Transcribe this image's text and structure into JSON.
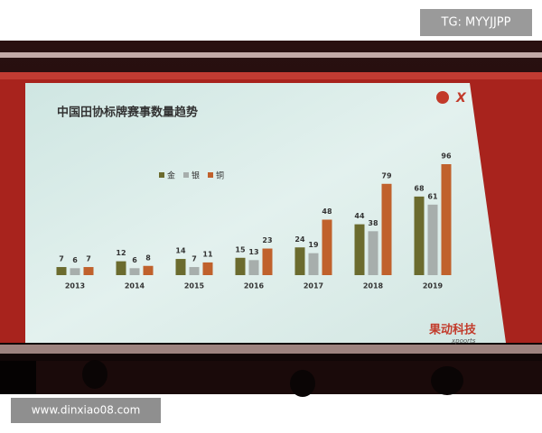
{
  "chart_data": {
    "type": "bar",
    "title": "中国田协标牌赛事数量趋势",
    "categories": [
      "2013",
      "2014",
      "2015",
      "2016",
      "2017",
      "2018",
      "2019"
    ],
    "series": [
      {
        "name": "金",
        "color": "#6b6b2e",
        "values": [
          7,
          12,
          14,
          15,
          24,
          44,
          68
        ]
      },
      {
        "name": "银",
        "color": "#a7aeac",
        "values": [
          6,
          6,
          7,
          13,
          19,
          38,
          61
        ]
      },
      {
        "name": "铜",
        "color": "#c0612c",
        "values": [
          7,
          8,
          11,
          23,
          48,
          79,
          96
        ]
      }
    ]
  },
  "watermark_top": "TG: MYYJJPP",
  "watermark_bottom": "www.dinxiao08.com",
  "logo_top": "X",
  "logo_bottom": "果动科技",
  "logo_bottom_sub": "xpoorts"
}
